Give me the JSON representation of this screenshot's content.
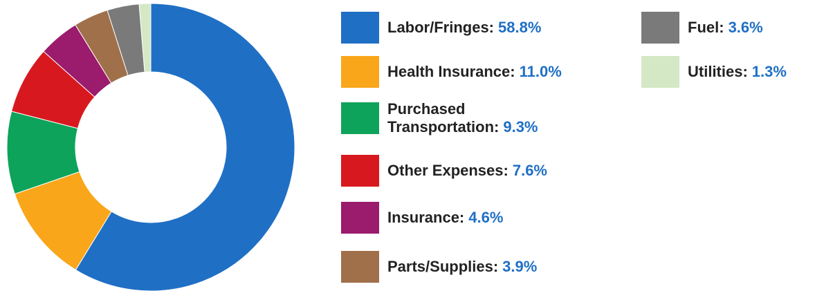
{
  "chart_data": {
    "type": "donut",
    "categories": [
      "Labor/Fringes:",
      "Health Insurance:",
      "Purchased Transportation:",
      "Other Expenses:",
      "Insurance:",
      "Parts/Supplies:",
      "Fuel:",
      "Utilities:"
    ],
    "values": [
      58.8,
      11.0,
      9.3,
      7.6,
      4.6,
      3.9,
      3.6,
      1.3
    ],
    "value_labels": [
      "58.8%",
      "11.0%",
      "9.3%",
      "7.6%",
      "4.6%",
      "3.9%",
      "3.6%",
      "1.3%"
    ],
    "colors": [
      "#1f6fc5",
      "#f9a61a",
      "#0ea35a",
      "#d7191f",
      "#9b1b6c",
      "#a0704a",
      "#7a7a7a",
      "#d5e8c5"
    ]
  }
}
